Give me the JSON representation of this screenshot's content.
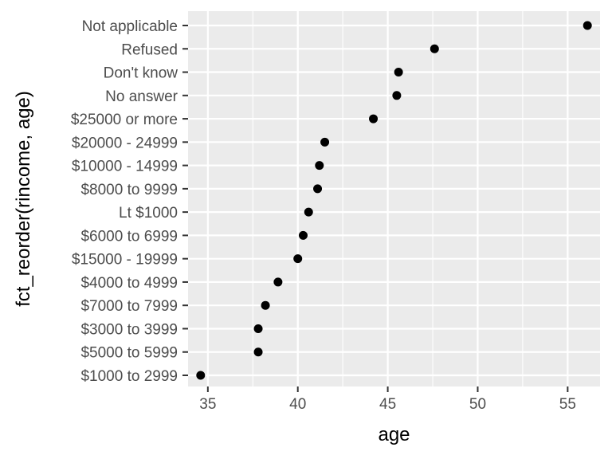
{
  "chart_data": {
    "type": "scatter",
    "xlabel": "age",
    "ylabel": "fct_reorder(rincome, age)",
    "xlim": [
      33.9,
      56.8
    ],
    "x_ticks": [
      35,
      40,
      45,
      50,
      55
    ],
    "x_tick_labels": [
      "35",
      "40",
      "45",
      "50",
      "55"
    ],
    "categories": [
      "$1000 to 2999",
      "$5000 to 5999",
      "$3000 to 3999",
      "$7000 to 7999",
      "$4000 to 4999",
      "$15000 - 19999",
      "$6000 to 6999",
      "Lt $1000",
      "$8000 to 9999",
      "$10000 - 14999",
      "$20000 - 24999",
      "$25000 or more",
      "No answer",
      "Don't know",
      "Refused",
      "Not applicable"
    ],
    "values": [
      34.6,
      37.8,
      37.8,
      38.2,
      38.9,
      40.0,
      40.3,
      40.6,
      41.1,
      41.2,
      41.5,
      44.2,
      45.5,
      45.6,
      47.6,
      56.1
    ],
    "grid": true,
    "panel_background": "#ebebeb",
    "grid_color": "#ffffff",
    "point_color": "#000000",
    "tick_label_color": "#4d4d4d"
  }
}
